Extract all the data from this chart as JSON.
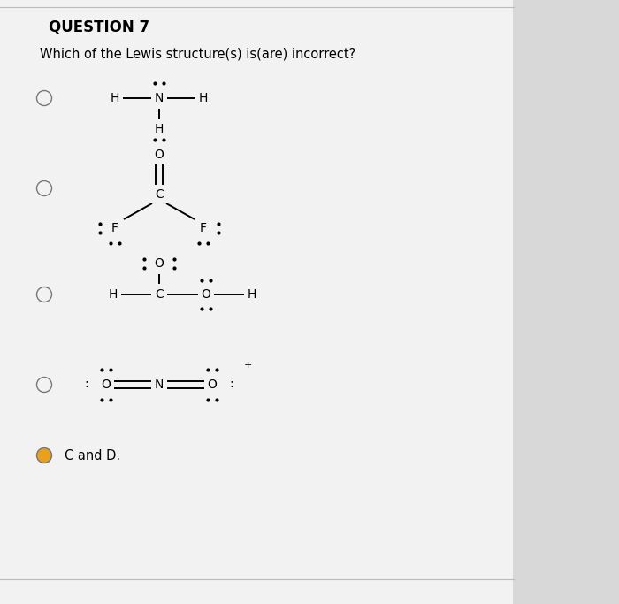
{
  "title": "QUESTION 7",
  "question": "Which of the Lewis structure(s) is(are) incorrect?",
  "bg_color": "#d8d8d8",
  "content_bg": "#f0f0f0",
  "answer_color": "#e8a020",
  "text_color": "#000000",
  "answer_text": "C and D."
}
